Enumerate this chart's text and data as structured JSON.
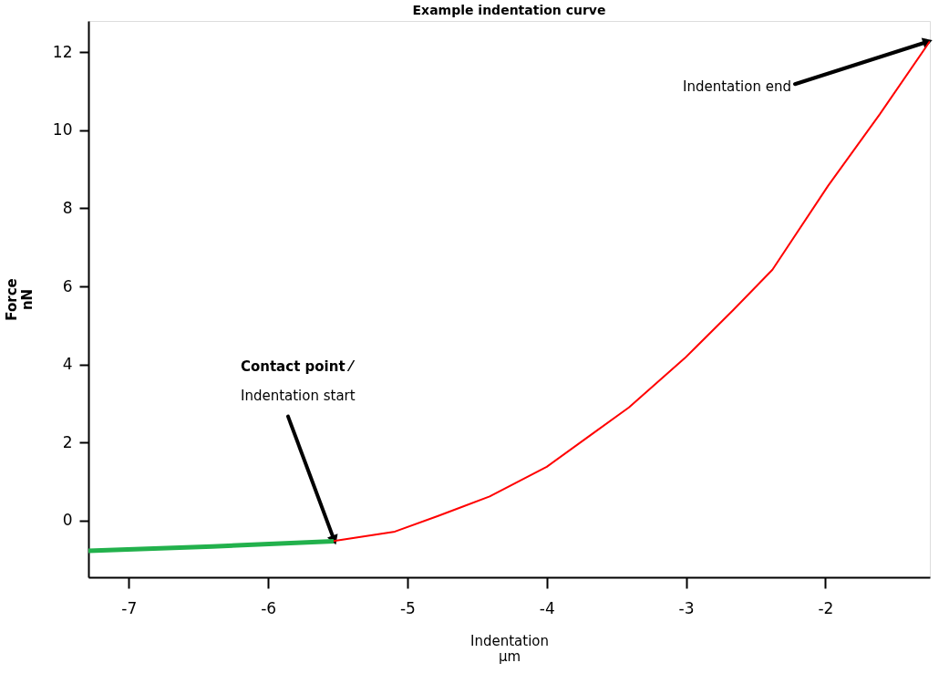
{
  "chart_data": {
    "type": "line",
    "title": "Example indentation curve",
    "xlabel": "Indentation\nμm",
    "ylabel": "Force\nnN",
    "xlim": [
      -7.29,
      -1.25
    ],
    "ylim": [
      -1.45,
      12.8
    ],
    "xticks": [
      -7,
      -6,
      -5,
      -4,
      -3,
      -2
    ],
    "yticks": [
      0,
      2,
      4,
      6,
      8,
      10,
      12
    ],
    "grid": false,
    "line_style": "solid",
    "marker": "none",
    "series": [
      {
        "color": "#ff0000",
        "x": [
          -5.53,
          -5.09,
          -4.78,
          -4.41,
          -4.0,
          -3.69,
          -3.41,
          -3.01,
          -2.66,
          -2.38,
          -1.98,
          -1.61,
          -1.25
        ],
        "values": [
          -0.52,
          -0.28,
          0.12,
          0.62,
          1.38,
          2.18,
          2.9,
          4.16,
          5.4,
          6.43,
          8.58,
          10.41,
          12.28
        ]
      },
      {
        "color": "#22b14c",
        "x": [
          -7.29,
          -6.4,
          -5.53
        ],
        "values": [
          -0.77,
          -0.66,
          -0.53
        ]
      }
    ],
    "annotations": [
      {
        "text": "Contact point ⁄\nIndentation start",
        "x": -5.53,
        "y": -0.53
      },
      {
        "text": "Indentation end",
        "x": -1.25,
        "y": 12.28
      }
    ]
  }
}
